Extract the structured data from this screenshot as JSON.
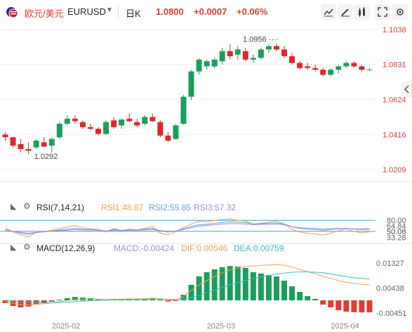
{
  "header": {
    "symbol_cn": "欧元/美元",
    "symbol_code": "EURUSD",
    "period": "日K",
    "price": "1.0800",
    "change": "+0.0007",
    "change_pct": "+0.06%"
  },
  "toolbar_icons": [
    "line-chart-icon",
    "draw-icon",
    "indicator-icon",
    "expand-icon",
    "settings-icon"
  ],
  "colors": {
    "up": "#1a9e5c",
    "down": "#e0262d",
    "rsi1": "#f5a054",
    "rsi2": "#5fa8d8",
    "rsi3": "#a58ad6",
    "dif": "#f5a054",
    "dea": "#3cbcc7",
    "neg": "#e03c31"
  },
  "rsi_panel": {
    "title": "RSI(7,14,21)",
    "rsi1": "RSI1:48.67",
    "rsi2": "RSI2:55.85",
    "rsi3": "RSI3:57.32",
    "ticks": [
      "80.00",
      "64.84",
      "50.06",
      "50.00",
      "33.28"
    ]
  },
  "macd_panel": {
    "title": "MACD(12,26,9)",
    "macd": "MACD:-0.00424",
    "dif": "DIF:0.00546",
    "dea": "DEA:0.00759",
    "ticks": [
      "0.01327",
      "0.00438",
      "-0.00451"
    ]
  },
  "chart_data": [
    {
      "type": "candlestick",
      "price_ticks": [
        "1.1038",
        "1.0831",
        "1.0624",
        "1.0416",
        "1.0209"
      ],
      "ylim": [
        1.0209,
        1.1038
      ],
      "annotations": {
        "high": "1.0956",
        "low": "1.0292"
      },
      "x_ticks": [
        "2025-02",
        "2025-03",
        "2025-04"
      ],
      "candles": [
        [
          1.0416,
          1.043,
          1.038,
          1.04
        ],
        [
          1.04,
          1.0405,
          1.034,
          1.035
        ],
        [
          1.036,
          1.039,
          1.031,
          1.033
        ],
        [
          1.033,
          1.037,
          1.03,
          1.032
        ],
        [
          1.034,
          1.039,
          1.033,
          1.038
        ],
        [
          1.037,
          1.04,
          1.034,
          1.0345
        ],
        [
          1.035,
          1.04,
          1.031,
          1.039
        ],
        [
          1.04,
          1.049,
          1.039,
          1.048
        ],
        [
          1.048,
          1.053,
          1.047,
          1.051
        ],
        [
          1.051,
          1.053,
          1.048,
          1.0495
        ],
        [
          1.049,
          1.05,
          1.045,
          1.046
        ],
        [
          1.046,
          1.048,
          1.044,
          1.045
        ],
        [
          1.045,
          1.046,
          1.041,
          1.042
        ],
        [
          1.042,
          1.05,
          1.0415,
          1.049
        ],
        [
          1.05,
          1.052,
          1.045,
          1.046
        ],
        [
          1.047,
          1.051,
          1.045,
          1.0505
        ],
        [
          1.051,
          1.054,
          1.049,
          1.0495
        ],
        [
          1.049,
          1.051,
          1.046,
          1.047
        ],
        [
          1.048,
          1.053,
          1.047,
          1.052
        ],
        [
          1.052,
          1.054,
          1.049,
          1.0495
        ],
        [
          1.049,
          1.05,
          1.04,
          1.041
        ],
        [
          1.041,
          1.043,
          1.037,
          1.038
        ],
        [
          1.039,
          1.048,
          1.0385,
          1.047
        ],
        [
          1.048,
          1.065,
          1.0475,
          1.064
        ],
        [
          1.064,
          1.08,
          1.062,
          1.079
        ],
        [
          1.079,
          1.087,
          1.077,
          1.086
        ],
        [
          1.082,
          1.086,
          1.08,
          1.085
        ],
        [
          1.082,
          1.087,
          1.081,
          1.086
        ],
        [
          1.085,
          1.093,
          1.083,
          1.091
        ],
        [
          1.091,
          1.095,
          1.086,
          1.088
        ],
        [
          1.089,
          1.094,
          1.086,
          1.092
        ],
        [
          1.091,
          1.093,
          1.085,
          1.086
        ],
        [
          1.086,
          1.089,
          1.084,
          1.087
        ],
        [
          1.087,
          1.093,
          1.086,
          1.092
        ],
        [
          1.092,
          1.095,
          1.09,
          1.094
        ],
        [
          1.094,
          1.0956,
          1.091,
          1.092
        ],
        [
          1.092,
          1.094,
          1.087,
          1.088
        ],
        [
          1.088,
          1.09,
          1.083,
          1.084
        ],
        [
          1.084,
          1.085,
          1.08,
          1.081
        ],
        [
          1.082,
          1.084,
          1.08,
          1.081
        ],
        [
          1.081,
          1.083,
          1.079,
          1.08
        ],
        [
          1.08,
          1.081,
          1.076,
          1.077
        ],
        [
          1.077,
          1.081,
          1.076,
          1.08
        ],
        [
          1.08,
          1.083,
          1.078,
          1.082
        ],
        [
          1.082,
          1.085,
          1.081,
          1.084
        ],
        [
          1.084,
          1.085,
          1.081,
          1.082
        ],
        [
          1.082,
          1.083,
          1.079,
          1.08
        ],
        [
          1.08,
          1.081,
          1.0795,
          1.08
        ]
      ]
    },
    {
      "type": "line",
      "series": [
        {
          "name": "RSI1",
          "values": [
            60,
            48,
            40,
            35,
            47,
            49,
            53,
            58,
            62,
            66,
            60,
            57,
            55,
            48,
            58,
            52,
            56,
            54,
            58,
            63,
            45,
            40,
            49,
            60,
            70,
            78,
            76,
            80,
            82,
            84,
            80,
            78,
            70,
            72,
            75,
            78,
            70,
            56,
            48,
            45,
            43,
            40,
            45,
            52,
            57,
            50,
            46,
            48.67
          ]
        },
        {
          "name": "RSI2",
          "values": [
            55,
            50,
            45,
            42,
            47,
            49,
            51,
            54,
            56,
            58,
            56,
            55,
            54,
            51,
            55,
            53,
            54,
            54,
            56,
            58,
            52,
            48,
            51,
            57,
            63,
            68,
            69,
            72,
            74,
            76,
            75,
            74,
            70,
            71,
            72,
            73,
            70,
            63,
            58,
            56,
            55,
            53,
            55,
            57,
            58,
            56,
            55,
            55.85
          ]
        },
        {
          "name": "RSI3",
          "values": [
            53,
            50,
            47,
            45,
            47,
            49,
            50,
            52,
            53,
            55,
            54,
            54,
            53,
            51,
            53,
            52,
            53,
            53,
            54,
            55,
            52,
            50,
            51,
            55,
            60,
            64,
            66,
            68,
            70,
            71,
            71,
            70,
            68,
            69,
            69,
            70,
            68,
            63,
            60,
            59,
            58,
            56,
            57,
            58,
            58,
            57,
            57,
            57.32
          ]
        }
      ]
    },
    {
      "type": "bar",
      "series": [
        {
          "name": "MACD",
          "values": [
            -0.001,
            -0.002,
            -0.0025,
            -0.0022,
            -0.0015,
            -0.001,
            -0.0005,
            0.0002,
            0.0008,
            0.0012,
            0.001,
            0.0008,
            0.0005,
            0.0002,
            0.0005,
            0.0004,
            0.0006,
            0.0005,
            0.0006,
            0.0008,
            0.0002,
            -0.0004,
            -0.0002,
            0.002,
            0.0055,
            0.0085,
            0.01,
            0.011,
            0.0118,
            0.0122,
            0.012,
            0.0115,
            0.01,
            0.0095,
            0.009,
            0.0085,
            0.007,
            0.005,
            0.003,
            0.0015,
            0.0005,
            -0.0015,
            -0.0025,
            -0.0035,
            -0.004,
            -0.0042,
            -0.0043,
            -0.00424
          ]
        },
        {
          "name": "DIF",
          "values": [
            -0.0005,
            -0.001,
            -0.0015,
            -0.0016,
            -0.0014,
            -0.0012,
            -0.0009,
            -0.0005,
            -0.0001,
            0.0003,
            0.0005,
            0.0005,
            0.0004,
            0.0003,
            0.0004,
            0.0004,
            0.0005,
            0.0005,
            0.0006,
            0.0008,
            0.0006,
            0.0002,
            0.0002,
            0.0015,
            0.0035,
            0.0055,
            0.007,
            0.0085,
            0.0098,
            0.0108,
            0.0115,
            0.012,
            0.0122,
            0.0124,
            0.0126,
            0.0127,
            0.0125,
            0.0118,
            0.011,
            0.0102,
            0.0095,
            0.0085,
            0.0078,
            0.007,
            0.0064,
            0.006,
            0.0057,
            0.00546
          ]
        },
        {
          "name": "DEA",
          "values": [
            0.0,
            -0.0002,
            -0.0005,
            -0.0007,
            -0.0008,
            -0.0009,
            -0.0009,
            -0.0008,
            -0.0007,
            -0.0005,
            -0.0003,
            -0.0001,
            0.0,
            0.0001,
            0.0002,
            0.0002,
            0.0003,
            0.0003,
            0.0004,
            0.0004,
            0.0004,
            0.0004,
            0.0003,
            0.0005,
            0.001,
            0.0018,
            0.0027,
            0.0036,
            0.0046,
            0.0055,
            0.0063,
            0.007,
            0.0077,
            0.0083,
            0.0088,
            0.0093,
            0.0097,
            0.01,
            0.0101,
            0.0101,
            0.01,
            0.0098,
            0.0094,
            0.0089,
            0.0084,
            0.008,
            0.0078,
            0.00759
          ]
        }
      ]
    }
  ]
}
